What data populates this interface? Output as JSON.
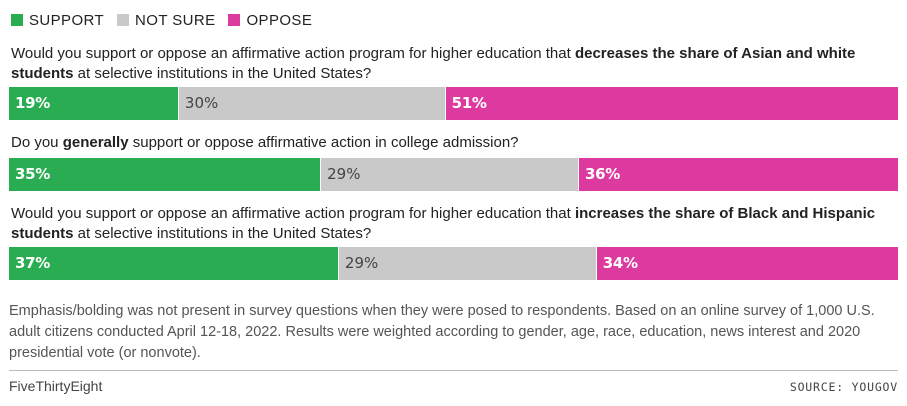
{
  "legend": [
    {
      "label": "SUPPORT",
      "color": "#2aac52"
    },
    {
      "label": "NOT SURE",
      "color": "#c9c9c9"
    },
    {
      "label": "OPPOSE",
      "color": "#dd3a9f"
    }
  ],
  "chart_data": {
    "type": "bar",
    "orientation": "horizontal-stacked-100",
    "series": [
      {
        "name": "SUPPORT",
        "values": [
          19,
          35,
          37
        ],
        "color": "#2aac52"
      },
      {
        "name": "NOT SURE",
        "values": [
          30,
          29,
          29
        ],
        "color": "#c9c9c9"
      },
      {
        "name": "OPPOSE",
        "values": [
          51,
          36,
          34
        ],
        "color": "#dd3a9f"
      }
    ],
    "categories": [
      {
        "parts": [
          {
            "text": "Would you support or oppose an affirmative action program for higher education that ",
            "bold": false
          },
          {
            "text": "decreases the share of Asian and white students",
            "bold": true
          },
          {
            "text": " at selective institutions in the United States?",
            "bold": false
          }
        ],
        "labels": [
          "19%",
          "30%",
          "51%"
        ]
      },
      {
        "parts": [
          {
            "text": "Do you ",
            "bold": false
          },
          {
            "text": "generally",
            "bold": true
          },
          {
            "text": " support or oppose affirmative action in college admission?",
            "bold": false
          }
        ],
        "labels": [
          "35%",
          "29%",
          "36%"
        ]
      },
      {
        "parts": [
          {
            "text": "Would you support or oppose an affirmative action program for higher education that ",
            "bold": false
          },
          {
            "text": "increases the share of Black and Hispanic students",
            "bold": true
          },
          {
            "text": " at selective institutions in the United States?",
            "bold": false
          }
        ],
        "labels": [
          "37%",
          "29%",
          "34%"
        ]
      }
    ]
  },
  "note": "Emphasis/bolding was not present in survey questions when they were posed to respondents. Based on an online survey of 1,000 U.S. adult citizens conducted April 12-18, 2022. Results were weighted according to gender, age, race, education, news interest and 2020 presidential vote (or nonvote).",
  "footer": {
    "brand": "FiveThirtyEight",
    "source": "SOURCE: YOUGOV"
  }
}
